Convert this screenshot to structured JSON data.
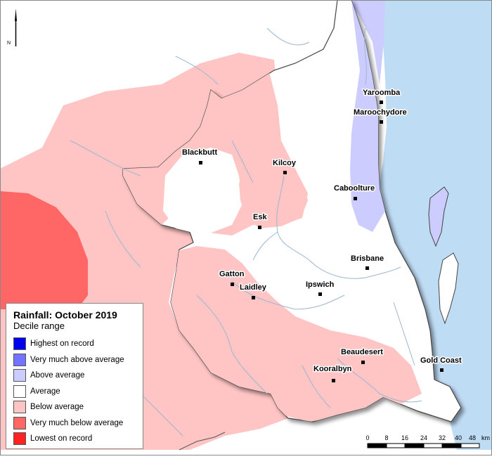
{
  "legend": {
    "title": "Rainfall: October 2019",
    "subtitle": "Decile range",
    "items": [
      {
        "label": "Highest on record",
        "color": "#0000ee"
      },
      {
        "label": "Very much above average",
        "color": "#7373ff"
      },
      {
        "label": "Above average",
        "color": "#ccccff"
      },
      {
        "label": "Average",
        "color": "#ffffff"
      },
      {
        "label": "Below average",
        "color": "#ffc4c4"
      },
      {
        "label": "Very much below average",
        "color": "#ff6666"
      },
      {
        "label": "Lowest on record",
        "color": "#ff2222"
      }
    ]
  },
  "north_arrow": {
    "label": "N"
  },
  "scale_bar": {
    "ticks": [
      "0",
      "8",
      "16",
      "24",
      "32",
      "40",
      "48"
    ],
    "unit": "km"
  },
  "towns": [
    {
      "name": "Yaroomba"
    },
    {
      "name": "Maroochydore"
    },
    {
      "name": "Blackbutt"
    },
    {
      "name": "Kilcoy"
    },
    {
      "name": "Caboolture"
    },
    {
      "name": "Esk"
    },
    {
      "name": "Gatton"
    },
    {
      "name": "Laidley"
    },
    {
      "name": "Brisbane"
    },
    {
      "name": "Ipswich"
    },
    {
      "name": "Beaudesert"
    },
    {
      "name": "Kooralbyn"
    },
    {
      "name": "Gold Coast"
    }
  ]
}
